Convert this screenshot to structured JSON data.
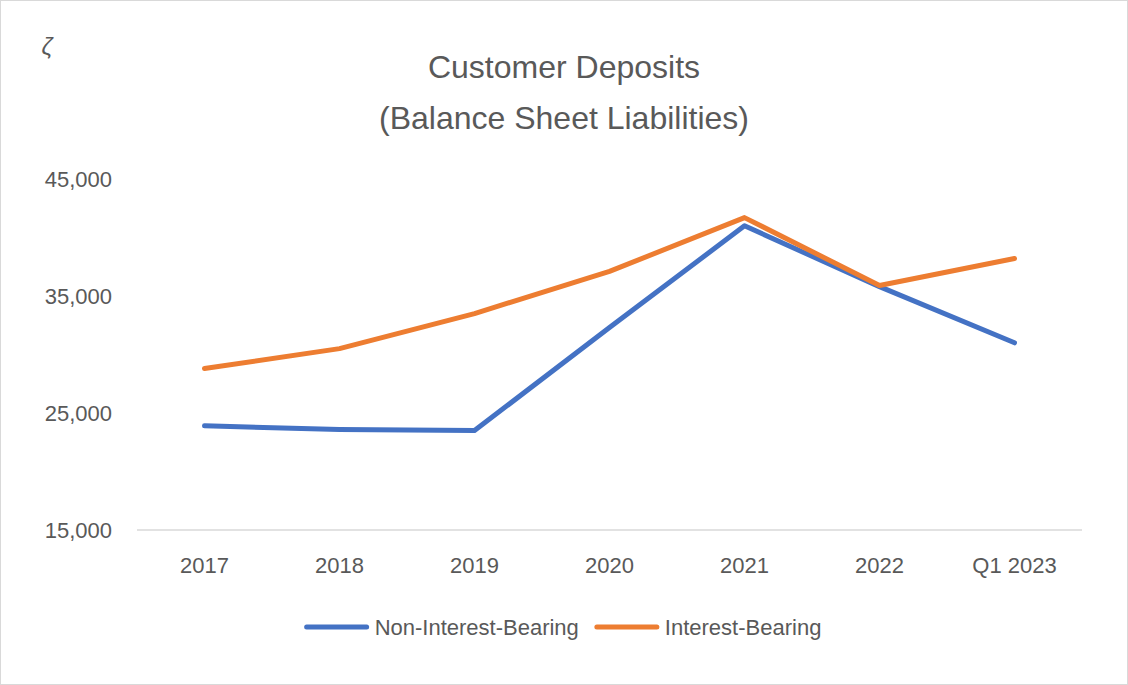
{
  "chart_data": {
    "type": "line",
    "title": "Customer Deposits",
    "subtitle": "(Balance Sheet Liabilities)",
    "ylabel": "ζ",
    "categories": [
      "2017",
      "2018",
      "2019",
      "2020",
      "2021",
      "2022",
      "Q1 2023"
    ],
    "series": [
      {
        "name": "Non-Interest-Bearing",
        "color": "#4472c4",
        "values": [
          23900,
          23600,
          23500,
          32300,
          41000,
          35800,
          31000
        ]
      },
      {
        "name": "Interest-Bearing",
        "color": "#ed7d31",
        "values": [
          28800,
          30500,
          33500,
          37100,
          41700,
          35900,
          38200
        ]
      }
    ],
    "ylim": [
      15000,
      45000
    ],
    "yticks": [
      {
        "value": 15000,
        "label": "15,000"
      },
      {
        "value": 25000,
        "label": "25,000"
      },
      {
        "value": 35000,
        "label": "35,000"
      },
      {
        "value": 45000,
        "label": "45,000"
      }
    ],
    "grid": false,
    "legend": "bottom"
  }
}
